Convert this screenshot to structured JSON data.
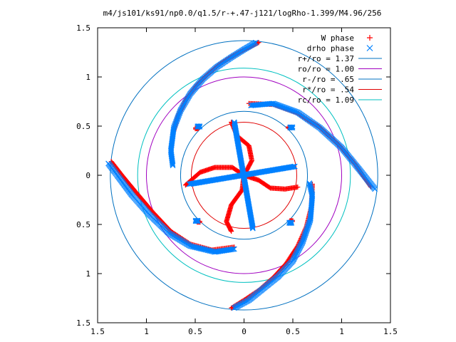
{
  "chart_data": {
    "type": "scatter",
    "title": "m4/js101/ks91/np0.0/q1.5/r-+.47-j121/logRho-1.399/M4.96/256",
    "xlabel": "",
    "ylabel": "",
    "xlim": [
      -1.5,
      1.5
    ],
    "ylim": [
      -1.5,
      1.5
    ],
    "x_ticks": [
      -1.5,
      -1,
      -0.5,
      0,
      0.5,
      1,
      1.5
    ],
    "y_ticks": [
      -1.5,
      -1,
      -0.5,
      0,
      0.5,
      1,
      1.5
    ],
    "x_tick_labels": [
      "1.5",
      "1",
      "0.5",
      "0",
      "0.5",
      "1",
      "1.5"
    ],
    "y_tick_labels": [
      "1.5",
      "1",
      "0.5",
      "0",
      "0.5",
      "1",
      "1.5"
    ],
    "grid": false,
    "legend_position": "top-right",
    "legend": [
      {
        "label": "W phase",
        "marker": "+",
        "color": "#ff0000"
      },
      {
        "label": "drho phase",
        "marker": "x",
        "color": "#0080ff"
      },
      {
        "label": "r+/ro = 1.37",
        "marker": "line",
        "color": "#0070c0"
      },
      {
        "label": "ro/ro = 1.00",
        "marker": "line",
        "color": "#a000c0"
      },
      {
        "label": "r-/ro = .65",
        "marker": "line",
        "color": "#0070c0"
      },
      {
        "label": "r*/ro = .54",
        "marker": "line",
        "color": "#e00000"
      },
      {
        "label": "rc/ro = 1.09",
        "marker": "line",
        "color": "#00c0c0"
      }
    ],
    "circles": [
      {
        "name": "r+/ro = 1.37",
        "r": 1.37,
        "color": "#0070c0"
      },
      {
        "name": "ro/ro = 1.00",
        "r": 1.0,
        "color": "#a000c0"
      },
      {
        "name": "r-/ro = .65",
        "r": 0.65,
        "color": "#0070c0"
      },
      {
        "name": "r*/ro = .54",
        "r": 0.54,
        "color": "#e00000"
      },
      {
        "name": "rc/ro = 1.09",
        "r": 1.09,
        "color": "#00c0c0"
      }
    ],
    "series": [
      {
        "name": "W phase",
        "color": "#ff0000",
        "marker": "+",
        "arms": [
          [
            [
              0.15,
              1.35
            ],
            [
              0.03,
              1.29
            ],
            [
              -0.1,
              1.22
            ],
            [
              -0.25,
              1.13
            ],
            [
              -0.38,
              1.02
            ],
            [
              -0.5,
              0.9
            ],
            [
              -0.6,
              0.76
            ],
            [
              -0.68,
              0.6
            ],
            [
              -0.72,
              0.45
            ]
          ],
          [
            [
              -1.36,
              0.14
            ],
            [
              -1.25,
              0.0
            ],
            [
              -1.1,
              -0.18
            ],
            [
              -0.93,
              -0.38
            ],
            [
              -0.75,
              -0.57
            ],
            [
              -0.55,
              -0.7
            ],
            [
              -0.33,
              -0.76
            ],
            [
              -0.1,
              -0.73
            ]
          ],
          [
            [
              -0.13,
              -1.35
            ],
            [
              0.0,
              -1.27
            ],
            [
              0.15,
              -1.17
            ],
            [
              0.3,
              -1.04
            ],
            [
              0.43,
              -0.9
            ],
            [
              0.55,
              -0.72
            ],
            [
              0.64,
              -0.52
            ],
            [
              0.69,
              -0.32
            ],
            [
              0.7,
              -0.09
            ]
          ],
          [
            [
              0.05,
              0.73
            ],
            [
              0.3,
              0.72
            ],
            [
              0.55,
              0.63
            ],
            [
              0.77,
              0.49
            ],
            [
              0.98,
              0.3
            ],
            [
              1.15,
              0.1
            ],
            [
              1.3,
              -0.12
            ]
          ]
        ],
        "inner": [
          [
            [
              -0.13,
              0.54
            ],
            [
              -0.07,
              0.4
            ],
            [
              0.05,
              0.3
            ],
            [
              0.08,
              0.15
            ],
            [
              0.0,
              0.0
            ],
            [
              -0.02,
              -0.15
            ],
            [
              -0.13,
              -0.3
            ],
            [
              -0.18,
              -0.47
            ],
            [
              -0.13,
              -0.57
            ]
          ],
          [
            [
              -0.6,
              -0.1
            ],
            [
              -0.45,
              0.03
            ],
            [
              -0.3,
              0.08
            ],
            [
              -0.12,
              0.08
            ],
            [
              0.0,
              0.0
            ],
            [
              0.15,
              -0.05
            ],
            [
              0.27,
              -0.13
            ],
            [
              0.42,
              -0.14
            ],
            [
              0.55,
              -0.12
            ]
          ]
        ],
        "dots": [
          [
            -0.5,
            0.47
          ],
          [
            0.45,
            0.48
          ],
          [
            -0.48,
            -0.48
          ],
          [
            0.47,
            -0.47
          ]
        ]
      },
      {
        "name": "drho phase",
        "color": "#0080ff",
        "marker": "x",
        "arms": [
          [
            [
              0.12,
              1.35
            ],
            [
              0.0,
              1.28
            ],
            [
              -0.13,
              1.2
            ],
            [
              -0.28,
              1.1
            ],
            [
              -0.42,
              0.98
            ],
            [
              -0.55,
              0.83
            ],
            [
              -0.65,
              0.66
            ],
            [
              -0.72,
              0.48
            ],
            [
              -0.75,
              0.25
            ],
            [
              -0.73,
              0.1
            ]
          ],
          [
            [
              -1.39,
              0.12
            ],
            [
              -1.3,
              0.0
            ],
            [
              -1.15,
              -0.2
            ],
            [
              -0.97,
              -0.4
            ],
            [
              -0.77,
              -0.59
            ],
            [
              -0.55,
              -0.72
            ],
            [
              -0.3,
              -0.78
            ],
            [
              -0.1,
              -0.75
            ]
          ],
          [
            [
              -0.1,
              -1.35
            ],
            [
              0.05,
              -1.27
            ],
            [
              0.2,
              -1.15
            ],
            [
              0.35,
              -1.03
            ],
            [
              0.5,
              -0.87
            ],
            [
              0.6,
              -0.68
            ],
            [
              0.68,
              -0.45
            ],
            [
              0.7,
              -0.2
            ],
            [
              0.67,
              -0.08
            ]
          ],
          [
            [
              0.07,
              0.71
            ],
            [
              0.3,
              0.73
            ],
            [
              0.55,
              0.64
            ],
            [
              0.78,
              0.48
            ],
            [
              1.0,
              0.28
            ],
            [
              1.18,
              0.06
            ],
            [
              1.34,
              -0.14
            ]
          ]
        ],
        "inner": [
          [
            [
              -0.1,
              0.54
            ],
            [
              0.09,
              -0.54
            ]
          ],
          [
            [
              -0.56,
              -0.09
            ],
            [
              0.52,
              0.09
            ]
          ]
        ],
        "dots": [
          [
            -0.48,
            0.49
          ],
          [
            0.47,
            0.48
          ],
          [
            -0.5,
            -0.47
          ],
          [
            0.46,
            -0.49
          ]
        ]
      }
    ]
  }
}
